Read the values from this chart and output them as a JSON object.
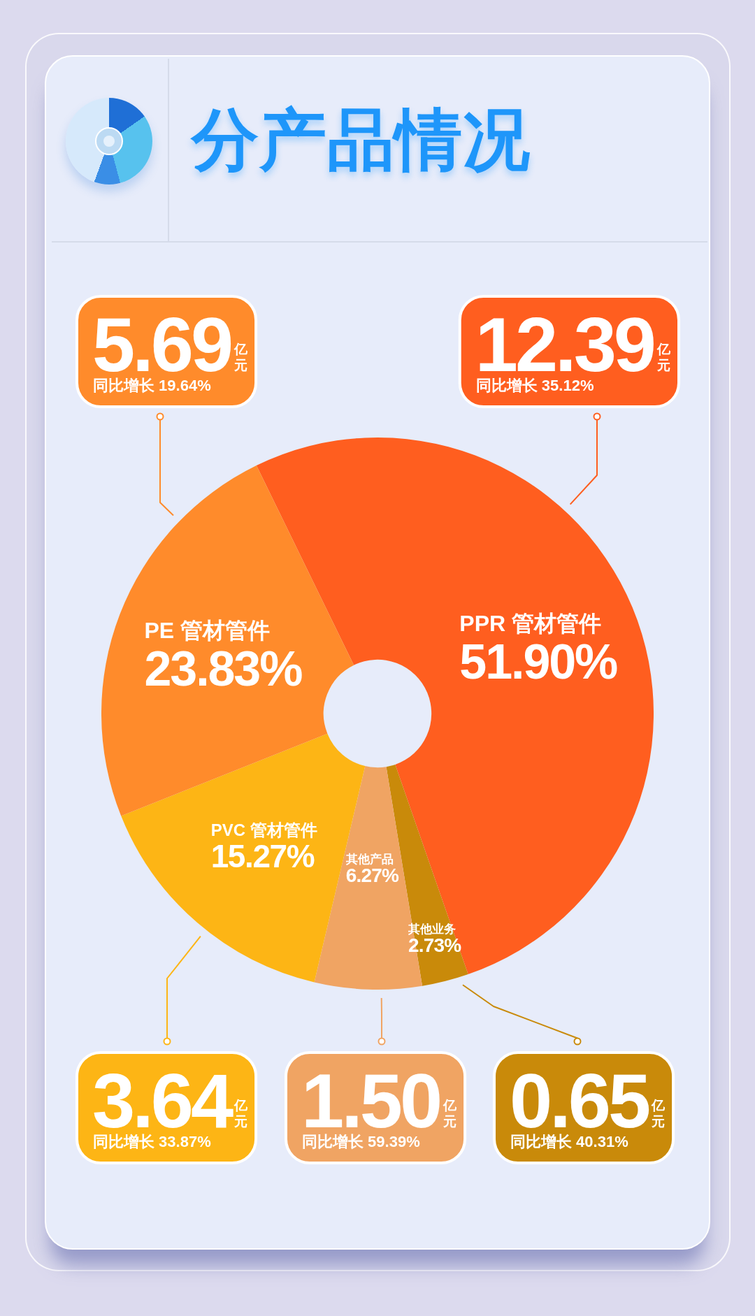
{
  "chart_data": {
    "type": "donut",
    "title": "分产品情况",
    "categories": [
      "PPR 管材管件",
      "其他业务",
      "其他产品",
      "PVC 管材管件",
      "PE 管材管件"
    ],
    "values": [
      51.9,
      2.73,
      6.27,
      15.27,
      23.83
    ],
    "value_labels": [
      "51.90%",
      "2.73%",
      "6.27%",
      "15.27%",
      "23.83%"
    ],
    "colors": [
      "#ff5e1f",
      "#c98a0a",
      "#f0a463",
      "#fdb515",
      "#ff8b2b"
    ],
    "annotations": [
      "12.39亿元",
      "同比增长 35.12%",
      "0.65亿元",
      "同比增长 40.31%",
      "1.50亿元",
      "同比增长 59.39%",
      "3.64亿元",
      "同比增长 33.87%",
      "5.69亿元",
      "同比增长 19.64%"
    ]
  }
}
